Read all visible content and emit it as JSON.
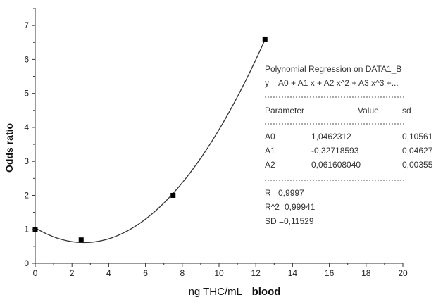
{
  "chart_data": {
    "type": "scatter",
    "xlabel_main": "ng THC/mL",
    "xlabel_bold": "blood",
    "ylabel": "Odds ratio",
    "xlim": [
      0,
      20
    ],
    "ylim": [
      0,
      7.5
    ],
    "x_ticks": [
      "0",
      "2",
      "4",
      "6",
      "8",
      "10",
      "12",
      "14",
      "16",
      "18",
      "20"
    ],
    "y_ticks": [
      "0",
      "1",
      "2",
      "3",
      "4",
      "5",
      "6",
      "7"
    ],
    "grid": false,
    "points": [
      {
        "x": 0,
        "y": 1.0
      },
      {
        "x": 2.5,
        "y": 0.69
      },
      {
        "x": 7.5,
        "y": 2.0
      },
      {
        "x": 12.5,
        "y": 6.6
      }
    ],
    "fit": {
      "a0": 1.0462312,
      "a1": -0.32718593,
      "a2": 0.06160804,
      "x_range": [
        0,
        12.5
      ]
    }
  },
  "regression_box": {
    "title": "Polynomial Regression on DATA1_B",
    "equation": "y = A0 + A1 x + A2 x^2 + A3 x^3 +...",
    "separator": "------------------------------------------------",
    "header": {
      "parameter": "Parameter",
      "value": "Value",
      "sd": "sd"
    },
    "rows": [
      {
        "name": "A0",
        "value": "1,0462312",
        "sd": "0,10561"
      },
      {
        "name": "A1",
        "value": "-0,32718593",
        "sd": "0,04627"
      },
      {
        "name": "A2",
        "value": "0,061608040",
        "sd": "0,00355"
      }
    ],
    "stats": [
      "R  =0,9997",
      "R^2=0,99941",
      "SD =0,11529"
    ]
  }
}
